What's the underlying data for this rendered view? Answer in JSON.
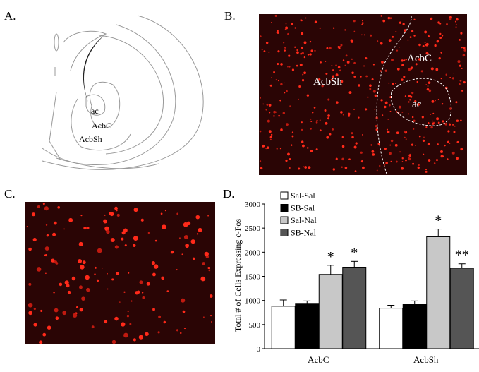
{
  "panels": {
    "a": {
      "letter": "A.",
      "labels": [
        "ac",
        "AcbC",
        "AcbSh"
      ]
    },
    "b": {
      "letter": "B.",
      "labels": [
        "AcbSh",
        "AcbC",
        "ac"
      ]
    },
    "c": {
      "letter": "C."
    },
    "d": {
      "letter": "D."
    }
  },
  "chart_data": {
    "type": "bar",
    "y_label": "Total # of Cells Expressing c-Fos",
    "categories": [
      "AcbC",
      "AcbSh"
    ],
    "series": [
      {
        "name": "Sal-Sal",
        "color": "#ffffff",
        "values": [
          880,
          840
        ],
        "errors": [
          130,
          60
        ],
        "annotations": [
          null,
          null
        ]
      },
      {
        "name": "SB-Sal",
        "color": "#000000",
        "values": [
          940,
          920
        ],
        "errors": [
          50,
          70
        ],
        "annotations": [
          null,
          null
        ]
      },
      {
        "name": "Sal-Nal",
        "color": "#c8c8c8",
        "values": [
          1540,
          2320
        ],
        "errors": [
          190,
          160
        ],
        "annotations": [
          "*",
          "*"
        ]
      },
      {
        "name": "SB-Nal",
        "color": "#555555",
        "values": [
          1690,
          1670
        ],
        "errors": [
          120,
          90
        ],
        "annotations": [
          "*",
          "**"
        ]
      }
    ],
    "ylim": [
      0,
      3000
    ],
    "yticks": [
      0,
      500,
      1000,
      1500,
      2000,
      2500,
      3000
    ],
    "legend": "top-left"
  }
}
